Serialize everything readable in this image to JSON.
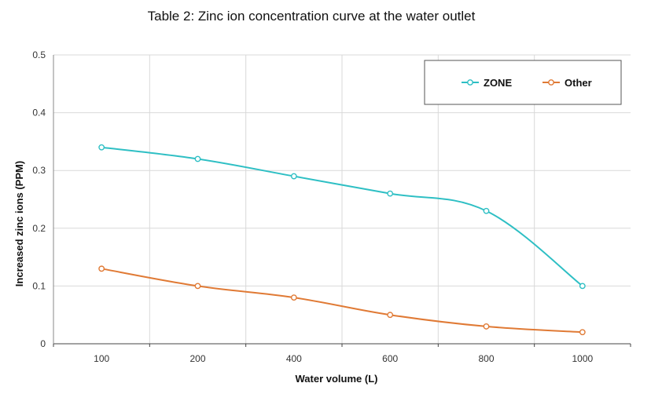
{
  "chart_data": {
    "type": "line",
    "title": "Table 2: Zinc ion concentration curve at the water outlet",
    "xlabel": "Water volume (L)",
    "ylabel": "Increased zinc ions (PPM)",
    "categories": [
      "100",
      "200",
      "400",
      "600",
      "800",
      "1000"
    ],
    "ylim": [
      0,
      0.5
    ],
    "yticks": [
      "0",
      "0.1",
      "0.2",
      "0.3",
      "0.4",
      "0.5"
    ],
    "grid": true,
    "legend_position": "top-right",
    "series": [
      {
        "name": "ZONE",
        "color": "#2ebfc4",
        "values": [
          0.34,
          0.32,
          0.29,
          0.26,
          0.23,
          0.1
        ]
      },
      {
        "name": "Other",
        "color": "#e07a35",
        "values": [
          0.13,
          0.1,
          0.08,
          0.05,
          0.03,
          0.02
        ]
      }
    ]
  }
}
